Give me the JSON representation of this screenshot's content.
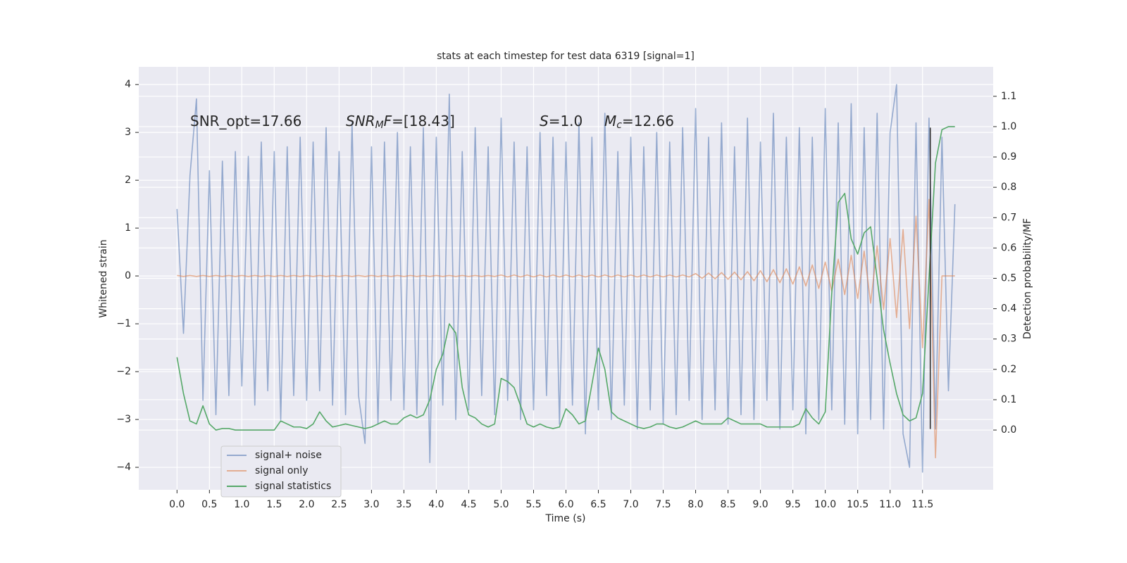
{
  "chart_data": {
    "type": "line",
    "title": "stats at each timestep for test data 6319 [signal=1]",
    "xlabel": "Time (s)",
    "ylabel": "Whitened strain",
    "y2label": "Detection probability/MF",
    "annotations": [
      "SNR_opt=17.66",
      [
        "SNR",
        "M",
        "F",
        "=[18.43]"
      ],
      [
        "S",
        "=1.0"
      ],
      [
        "M",
        "c",
        "=12.66"
      ]
    ],
    "xlim": [
      -0.59,
      12.59
    ],
    "ylim": [
      -4.47,
      4.37
    ],
    "y2lim": [
      -0.197,
      1.197
    ],
    "xticks": [
      {
        "value": 0,
        "label": "0.0"
      },
      0.5,
      {
        "value": 1,
        "label": "1.0"
      },
      1.5,
      {
        "value": 2,
        "label": "2.0"
      },
      2.5,
      {
        "value": 3,
        "label": "3.0"
      },
      3.5,
      {
        "value": 4,
        "label": "4.0"
      },
      4.5,
      {
        "value": 5,
        "label": "5.0"
      },
      5.5,
      {
        "value": 6,
        "label": "6.0"
      },
      6.5,
      {
        "value": 7,
        "label": "7.0"
      },
      7.5,
      {
        "value": 8,
        "label": "8.0"
      },
      8.5,
      {
        "value": 9,
        "label": "9.0"
      },
      9.5,
      {
        "value": 10,
        "label": "10.0"
      },
      10.5,
      {
        "value": 11,
        "label": "11.0"
      },
      11.5
    ],
    "yticks": [
      {
        "value": -4,
        "label": "−4"
      },
      {
        "value": -3,
        "label": "−3"
      },
      {
        "value": -2,
        "label": "−2"
      },
      {
        "value": -1,
        "label": "−1"
      },
      0,
      1,
      2,
      3,
      4
    ],
    "y2ticks": [
      {
        "value": 0,
        "label": "0.0"
      },
      0.1,
      0.2,
      0.3,
      0.4,
      0.5,
      0.6,
      0.7,
      0.8,
      0.9,
      {
        "value": 1,
        "label": "1.0"
      },
      1.1
    ],
    "grid": true,
    "legend": "lower left",
    "vline": {
      "x": 11.62,
      "y": [
        -3.2,
        3.1
      ],
      "color": "#333333"
    },
    "x": [
      0,
      0.1,
      0.2,
      0.3,
      0.4,
      0.5,
      0.6,
      0.7,
      0.8,
      0.9,
      1,
      1.1,
      1.2,
      1.3,
      1.4,
      1.5,
      1.6,
      1.7,
      1.8,
      1.9,
      2,
      2.1,
      2.2,
      2.3,
      2.4,
      2.5,
      2.6,
      2.7,
      2.8,
      2.9,
      3,
      3.1,
      3.2,
      3.3,
      3.4,
      3.5,
      3.6,
      3.7,
      3.8,
      3.9,
      4,
      4.1,
      4.2,
      4.3,
      4.4,
      4.5,
      4.6,
      4.7,
      4.8,
      4.9,
      5,
      5.1,
      5.2,
      5.3,
      5.4,
      5.5,
      5.6,
      5.7,
      5.8,
      5.9,
      6,
      6.1,
      6.2,
      6.3,
      6.4,
      6.5,
      6.6,
      6.7,
      6.8,
      6.9,
      7,
      7.1,
      7.2,
      7.3,
      7.4,
      7.5,
      7.6,
      7.7,
      7.8,
      7.9,
      8,
      8.1,
      8.2,
      8.3,
      8.4,
      8.5,
      8.6,
      8.7,
      8.8,
      8.9,
      9,
      9.1,
      9.2,
      9.3,
      9.4,
      9.5,
      9.6,
      9.7,
      9.8,
      9.9,
      10,
      10.1,
      10.2,
      10.3,
      10.4,
      10.5,
      10.6,
      10.7,
      10.8,
      10.9,
      11,
      11.1,
      11.2,
      11.3,
      11.4,
      11.5,
      11.6,
      11.7,
      11.8,
      11.9,
      12
    ],
    "series": [
      {
        "name": "signal+ noise",
        "color": "#4c72b0",
        "opacity": 0.55,
        "values": [
          1.4,
          -1.2,
          2.1,
          3.7,
          -2.6,
          2.2,
          -2.9,
          2.4,
          -2.5,
          2.6,
          -2.3,
          2.5,
          -2.7,
          2.8,
          -2.4,
          2.6,
          -3.0,
          2.7,
          -2.5,
          2.9,
          -2.6,
          2.8,
          -2.4,
          3.1,
          -2.7,
          2.6,
          -2.9,
          3.2,
          -2.5,
          -3.5,
          2.7,
          -3.1,
          2.8,
          -2.6,
          3.0,
          -2.8,
          2.7,
          -2.9,
          3.1,
          -3.9,
          2.9,
          -2.7,
          3.8,
          -3.0,
          2.6,
          -2.8,
          3.1,
          -2.5,
          2.7,
          -2.9,
          3.3,
          -2.6,
          2.8,
          -3.0,
          2.7,
          -2.8,
          3.0,
          -2.5,
          2.9,
          -3.1,
          2.8,
          -2.7,
          3.2,
          -3.3,
          2.9,
          -2.8,
          3.4,
          -3.0,
          2.6,
          -2.7,
          2.9,
          -3.2,
          2.7,
          -2.8,
          3.0,
          -3.1,
          2.8,
          -2.9,
          3.1,
          -2.6,
          3.5,
          -3.0,
          2.9,
          -2.8,
          3.2,
          -3.1,
          2.7,
          -2.9,
          3.3,
          -3.0,
          2.8,
          -2.6,
          3.4,
          -3.2,
          2.9,
          -2.8,
          3.1,
          -3.3,
          2.9,
          -3.0,
          3.5,
          -2.8,
          3.2,
          -3.1,
          3.6,
          -3.3,
          3.1,
          -3.0,
          3.4,
          -3.2,
          3.0,
          4.0,
          -3.3,
          -4.0,
          3.2,
          -4.1,
          3.3,
          -3.2,
          2.9,
          -2.4,
          1.5
        ]
      },
      {
        "name": "signal only",
        "color": "#dd8452",
        "opacity": 0.6,
        "values": [
          0.01,
          -0.01,
          0.01,
          -0.01,
          0.01,
          -0.01,
          0.01,
          -0.01,
          0.01,
          -0.01,
          0.01,
          -0.01,
          0.01,
          -0.01,
          0.01,
          -0.01,
          0.01,
          -0.01,
          0.01,
          -0.01,
          0.01,
          -0.01,
          0.01,
          -0.01,
          0.01,
          -0.01,
          0.01,
          -0.01,
          0.01,
          -0.01,
          0.01,
          -0.01,
          0.01,
          -0.01,
          0.01,
          -0.01,
          0.01,
          -0.01,
          0.01,
          -0.01,
          0.01,
          -0.01,
          0.01,
          -0.01,
          0.01,
          -0.01,
          0.01,
          -0.01,
          0.01,
          -0.01,
          0.02,
          -0.02,
          0.02,
          -0.02,
          0.02,
          -0.02,
          0.02,
          -0.02,
          0.02,
          -0.02,
          0.02,
          -0.02,
          0.02,
          -0.02,
          0.02,
          -0.02,
          0.02,
          -0.02,
          0.02,
          -0.02,
          0.02,
          -0.02,
          0.02,
          -0.02,
          0.02,
          -0.02,
          0.02,
          -0.02,
          0.02,
          -0.02,
          0.05,
          -0.05,
          0.06,
          -0.06,
          0.07,
          -0.07,
          0.08,
          -0.08,
          0.09,
          -0.1,
          0.11,
          -0.12,
          0.13,
          -0.14,
          0.15,
          -0.17,
          0.19,
          -0.21,
          0.23,
          -0.26,
          0.29,
          -0.32,
          0.35,
          -0.39,
          0.43,
          -0.47,
          0.52,
          -0.57,
          0.63,
          -0.7,
          0.78,
          -0.87,
          0.97,
          -1.1,
          1.25,
          -1.5,
          1.6,
          -3.8,
          0,
          0,
          0
        ]
      },
      {
        "name": "signal statistics",
        "color": "#55a868",
        "opacity": 1,
        "axis": "y2",
        "values": [
          0.24,
          0.12,
          0.03,
          0.02,
          0.08,
          0.02,
          0.0,
          0.005,
          0.005,
          0.0,
          0.0,
          0.0,
          0.0,
          0.0,
          0.0,
          0.0,
          0.03,
          0.02,
          0.01,
          0.01,
          0.005,
          0.02,
          0.06,
          0.03,
          0.01,
          0.015,
          0.02,
          0.015,
          0.01,
          0.005,
          0.01,
          0.02,
          0.03,
          0.02,
          0.02,
          0.04,
          0.05,
          0.04,
          0.05,
          0.1,
          0.2,
          0.25,
          0.35,
          0.32,
          0.14,
          0.05,
          0.04,
          0.02,
          0.01,
          0.02,
          0.17,
          0.16,
          0.14,
          0.08,
          0.02,
          0.01,
          0.02,
          0.01,
          0.005,
          0.01,
          0.07,
          0.05,
          0.02,
          0.03,
          0.15,
          0.27,
          0.2,
          0.06,
          0.04,
          0.03,
          0.02,
          0.01,
          0.005,
          0.01,
          0.02,
          0.02,
          0.01,
          0.005,
          0.01,
          0.02,
          0.03,
          0.02,
          0.02,
          0.02,
          0.02,
          0.04,
          0.03,
          0.02,
          0.02,
          0.02,
          0.02,
          0.01,
          0.01,
          0.01,
          0.01,
          0.01,
          0.02,
          0.07,
          0.04,
          0.02,
          0.06,
          0.45,
          0.75,
          0.78,
          0.63,
          0.58,
          0.65,
          0.67,
          0.5,
          0.33,
          0.22,
          0.12,
          0.05,
          0.03,
          0.04,
          0.12,
          0.5,
          0.88,
          0.99,
          1.0,
          1.0
        ]
      }
    ]
  }
}
